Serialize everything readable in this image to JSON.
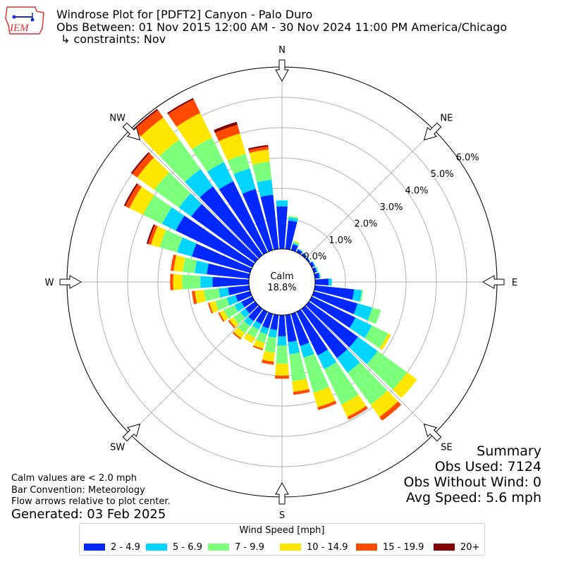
{
  "header": {
    "line1": "Windrose Plot for [PDFT2] Canyon - Palo Duro",
    "line2": "Obs Between: 01 Nov 2015 12:00 AM - 30 Nov 2024 11:00 PM America/Chicago",
    "line3": "↳ constraints: Nov",
    "logo_text": "IEM"
  },
  "center": {
    "label": "Calm",
    "value": "18.8%"
  },
  "footer_left": {
    "note1": "Calm values are < 2.0 mph",
    "note2": "Bar Convention: Meteorology",
    "note3": "Flow arrows relative to plot center.",
    "generated": "Generated: 03 Feb 2025"
  },
  "summary": {
    "title": "Summary",
    "obs_used": "Obs Used: 7124",
    "obs_without_wind": "Obs Without Wind: 0",
    "avg_speed": "Avg Speed: 5.6 mph"
  },
  "legend": {
    "title": "Wind Speed [mph]",
    "items": [
      {
        "label": "2 - 4.9",
        "color": "#0028ff"
      },
      {
        "label": "5 - 6.9",
        "color": "#00d4ff"
      },
      {
        "label": "7 - 9.9",
        "color": "#7cff7a"
      },
      {
        "label": "10 - 14.9",
        "color": "#ffe600"
      },
      {
        "label": "15 - 19.9",
        "color": "#ff4a00"
      },
      {
        "label": "20+",
        "color": "#800000"
      }
    ]
  },
  "chart_data": {
    "type": "windrose",
    "compass_labels": [
      "N",
      "NE",
      "E",
      "SE",
      "S",
      "SW",
      "W",
      "NW"
    ],
    "radial_ticks": [
      "0.0%",
      "1.0%",
      "2.0%",
      "3.0%",
      "4.0%",
      "5.0%",
      "6.0%"
    ],
    "radial_max": 6.0,
    "bin_width_deg": 10,
    "bins": [
      "2 - 4.9",
      "5 - 6.9",
      "7 - 9.9",
      "10 - 14.9",
      "15 - 19.9",
      "20+"
    ],
    "directions": [
      0,
      10,
      20,
      30,
      40,
      50,
      60,
      70,
      80,
      90,
      100,
      110,
      120,
      130,
      140,
      150,
      160,
      170,
      180,
      190,
      200,
      210,
      220,
      230,
      240,
      250,
      260,
      270,
      280,
      290,
      300,
      310,
      320,
      330,
      340,
      350
    ],
    "values": [
      [
        1.4,
        0.2,
        0.0,
        0.0,
        0.0,
        0.0
      ],
      [
        0.95,
        0.1,
        0.05,
        0.0,
        0.0,
        0.0
      ],
      [
        0.2,
        0.05,
        0.05,
        0.03,
        0.0,
        0.0
      ],
      [
        0.1,
        0.03,
        0.0,
        0.0,
        0.0,
        0.0
      ],
      [
        0.08,
        0.02,
        0.0,
        0.0,
        0.0,
        0.0
      ],
      [
        0.05,
        0.02,
        0.0,
        0.0,
        0.0,
        0.0
      ],
      [
        0.1,
        0.03,
        0.0,
        0.0,
        0.0,
        0.0
      ],
      [
        0.1,
        0.03,
        0.03,
        0.0,
        0.0,
        0.0
      ],
      [
        0.15,
        0.03,
        0.02,
        0.0,
        0.0,
        0.0
      ],
      [
        0.45,
        0.1,
        0.0,
        0.0,
        0.0,
        0.0
      ],
      [
        1.3,
        0.25,
        0.05,
        0.0,
        0.0,
        0.0
      ],
      [
        1.5,
        0.5,
        0.3,
        0.0,
        0.0,
        0.0
      ],
      [
        1.6,
        0.6,
        0.6,
        0.1,
        0.0,
        0.0
      ],
      [
        2.0,
        0.8,
        1.2,
        0.4,
        0.0,
        0.0
      ],
      [
        2.0,
        0.6,
        1.3,
        0.5,
        0.15,
        0.0
      ],
      [
        1.6,
        0.5,
        1.3,
        0.45,
        0.1,
        0.0
      ],
      [
        1.1,
        0.4,
        1.2,
        0.5,
        0.1,
        0.0
      ],
      [
        0.9,
        0.4,
        0.9,
        0.35,
        0.1,
        0.0
      ],
      [
        0.7,
        0.3,
        0.6,
        0.4,
        0.1,
        0.0
      ],
      [
        0.5,
        0.25,
        0.5,
        0.3,
        0.1,
        0.0
      ],
      [
        0.5,
        0.2,
        0.3,
        0.2,
        0.05,
        0.0
      ],
      [
        0.45,
        0.2,
        0.3,
        0.2,
        0.0,
        0.0
      ],
      [
        0.5,
        0.2,
        0.3,
        0.2,
        0.05,
        0.0
      ],
      [
        0.4,
        0.2,
        0.3,
        0.15,
        0.05,
        0.0
      ],
      [
        0.4,
        0.25,
        0.4,
        0.15,
        0.05,
        0.0
      ],
      [
        0.5,
        0.3,
        0.4,
        0.2,
        0.05,
        0.0
      ],
      [
        0.7,
        0.3,
        0.5,
        0.3,
        0.1,
        0.0
      ],
      [
        1.2,
        0.4,
        0.6,
        0.3,
        0.1,
        0.0
      ],
      [
        1.4,
        0.4,
        0.4,
        0.3,
        0.1,
        0.0
      ],
      [
        2.0,
        0.5,
        0.6,
        0.3,
        0.1,
        0.05
      ],
      [
        2.8,
        0.5,
        0.7,
        0.5,
        0.15,
        0.05
      ],
      [
        2.6,
        0.5,
        1.0,
        0.7,
        0.2,
        0.05
      ],
      [
        2.8,
        0.7,
        1.2,
        0.9,
        0.3,
        0.05
      ],
      [
        2.6,
        0.7,
        0.9,
        0.9,
        0.5,
        0.05
      ],
      [
        2.1,
        0.7,
        0.5,
        0.7,
        0.3,
        0.1
      ],
      [
        1.8,
        0.5,
        0.6,
        0.4,
        0.1,
        0.05
      ]
    ]
  }
}
